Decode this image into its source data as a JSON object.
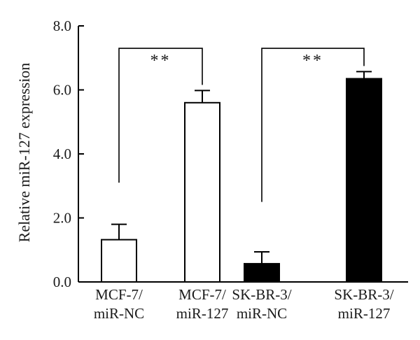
{
  "chart_data": {
    "type": "bar",
    "ylabel": "Relative miR-127 expression",
    "ylim": [
      0,
      8
    ],
    "yticks": [
      0,
      2,
      4,
      6,
      8
    ],
    "ytick_labels": [
      "0.0",
      "2.0",
      "4.0",
      "6.0",
      "8.0"
    ],
    "categories": [
      [
        "MCF-7/",
        "miR-NC"
      ],
      [
        "MCF-7/",
        "miR-127"
      ],
      [
        "SK-BR-3/",
        "miR-NC"
      ],
      [
        "SK-BR-3/",
        "miR-127"
      ]
    ],
    "values": [
      1.32,
      5.6,
      0.57,
      6.35
    ],
    "errors": [
      0.48,
      0.38,
      0.37,
      0.22
    ],
    "bar_fills": [
      "#ffffff",
      "#ffffff",
      "#000000",
      "#000000"
    ],
    "significance": [
      {
        "from": 0,
        "to": 1,
        "label": "**"
      },
      {
        "from": 2,
        "to": 3,
        "label": "**"
      }
    ],
    "grid": false,
    "legend": "none"
  }
}
